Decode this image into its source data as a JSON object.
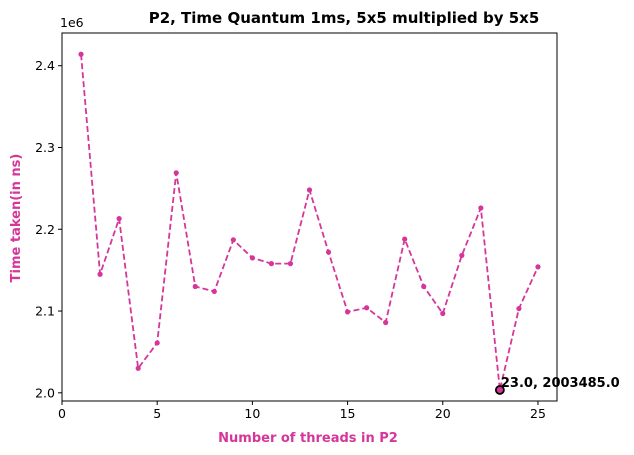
{
  "chart_data": {
    "type": "line",
    "title": "P2, Time Quantum 1ms, 5x5 multiplied by 5x5",
    "xlabel": "Number of threads in P2",
    "ylabel": "Time taken(in ns)",
    "y_offset_label": "1e6",
    "xlim": [
      0,
      26
    ],
    "ylim": [
      1.99,
      2.44
    ],
    "x_ticks": [
      0,
      5,
      10,
      15,
      20,
      25
    ],
    "x_tick_labels": [
      "0",
      "5",
      "10",
      "15",
      "20",
      "25"
    ],
    "y_ticks": [
      2.0,
      2.1,
      2.2,
      2.3,
      2.4
    ],
    "y_tick_labels": [
      "2.0",
      "2.1",
      "2.2",
      "2.3",
      "2.4"
    ],
    "grid": false,
    "series": [
      {
        "color": "#d6359a",
        "line_style": "dashed",
        "marker": "circle",
        "x": [
          1,
          2,
          3,
          4,
          5,
          6,
          7,
          8,
          9,
          10,
          11,
          12,
          13,
          14,
          15,
          16,
          17,
          18,
          19,
          20,
          21,
          22,
          23,
          24,
          25
        ],
        "y": [
          2.414,
          2.145,
          2.213,
          2.03,
          2.061,
          2.269,
          2.13,
          2.124,
          2.187,
          2.165,
          2.158,
          2.158,
          2.248,
          2.172,
          2.099,
          2.104,
          2.086,
          2.188,
          2.13,
          2.097,
          2.168,
          2.226,
          2.003485,
          2.103,
          2.154
        ]
      }
    ],
    "annotation": {
      "text": "23.0, 2003485.0",
      "x": 23.0,
      "y": 2.003485
    },
    "axis_label_color": "#d6359a",
    "highlight_marker_color": "#000000"
  }
}
